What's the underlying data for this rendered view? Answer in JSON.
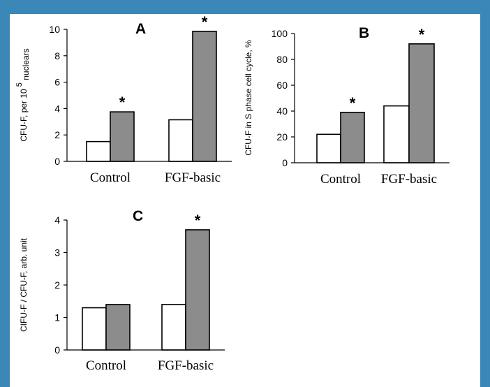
{
  "colors": {
    "frame": "#3a87b8",
    "panel": "#ffffff",
    "bar_white": "#ffffff",
    "bar_gray": "#8c8c8c",
    "stroke": "#000000"
  },
  "chart_data": [
    {
      "panel": "A",
      "type": "bar",
      "categories": [
        "Control",
        "FGF-basic"
      ],
      "series": [
        {
          "values": [
            1.5,
            3.15
          ]
        },
        {
          "values": [
            3.75,
            9.85
          ]
        }
      ],
      "ylabel": "CFU-F, per 10",
      "ylabel_sup": "5",
      "ylabel_sub": "nuclears",
      "ylim": [
        0,
        10
      ],
      "yticks": [
        "0",
        "2",
        "4",
        "6",
        "8",
        "10"
      ],
      "significance": [
        "*",
        "*"
      ]
    },
    {
      "panel": "B",
      "type": "bar",
      "categories": [
        "Control",
        "FGF-basic"
      ],
      "series": [
        {
          "values": [
            22,
            44
          ]
        },
        {
          "values": [
            39,
            92
          ]
        }
      ],
      "ylabel": "CFU-F in S phase cell cycle, %",
      "ylim": [
        0,
        100
      ],
      "yticks": [
        "0",
        "20",
        "40",
        "60",
        "80",
        "100"
      ],
      "significance": [
        "*",
        "*"
      ]
    },
    {
      "panel": "C",
      "type": "bar",
      "categories": [
        "Control",
        "FGF-basic"
      ],
      "series": [
        {
          "values": [
            1.3,
            1.4
          ]
        },
        {
          "values": [
            1.4,
            3.7
          ]
        }
      ],
      "ylabel": "CIFU-F / CFU-F, arb. unit",
      "ylim": [
        0,
        4
      ],
      "yticks": [
        "0",
        "1",
        "2",
        "3",
        "4"
      ],
      "significance": [
        "",
        "*"
      ]
    }
  ]
}
